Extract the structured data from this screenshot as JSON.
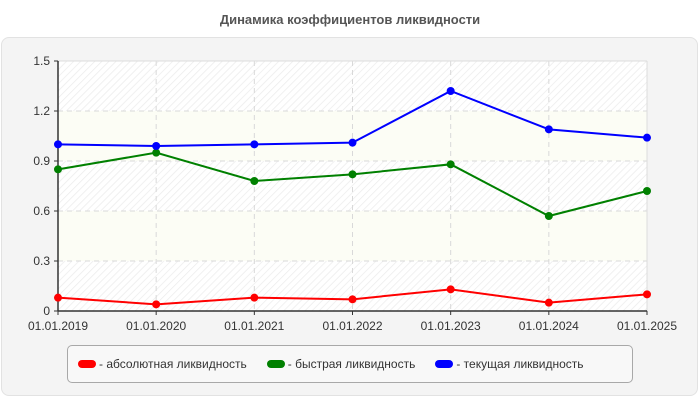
{
  "title": "Динамика коэффициентов ликвидности",
  "legend": [
    {
      "label": "- абсолютная ликвидность",
      "color": "#ff0000"
    },
    {
      "label": "- быстрая ликвидность",
      "color": "#008000"
    },
    {
      "label": "- текущая ликвидность",
      "color": "#0000ff"
    }
  ],
  "chart_data": {
    "type": "line",
    "title": "Динамика коэффициентов ликвидности",
    "xlabel": "",
    "ylabel": "",
    "x": [
      "01.01.2019",
      "01.01.2020",
      "01.01.2021",
      "01.01.2022",
      "01.01.2023",
      "01.01.2024",
      "01.01.2025"
    ],
    "y_ticks": [
      "0",
      "0.3",
      "0.6",
      "0.9",
      "1.2",
      "1.5"
    ],
    "ylim": [
      0,
      1.5
    ],
    "grid": true,
    "legend_position": "bottom",
    "series": [
      {
        "name": "абсолютная ликвидность",
        "color": "#ff0000",
        "values": [
          0.08,
          0.04,
          0.08,
          0.07,
          0.13,
          0.05,
          0.1
        ]
      },
      {
        "name": "быстрая ликвидность",
        "color": "#008000",
        "values": [
          0.85,
          0.95,
          0.78,
          0.82,
          0.88,
          0.57,
          0.72
        ]
      },
      {
        "name": "текущая ликвидность",
        "color": "#0000ff",
        "values": [
          1.0,
          0.99,
          1.0,
          1.01,
          1.32,
          1.09,
          1.04
        ]
      }
    ]
  }
}
